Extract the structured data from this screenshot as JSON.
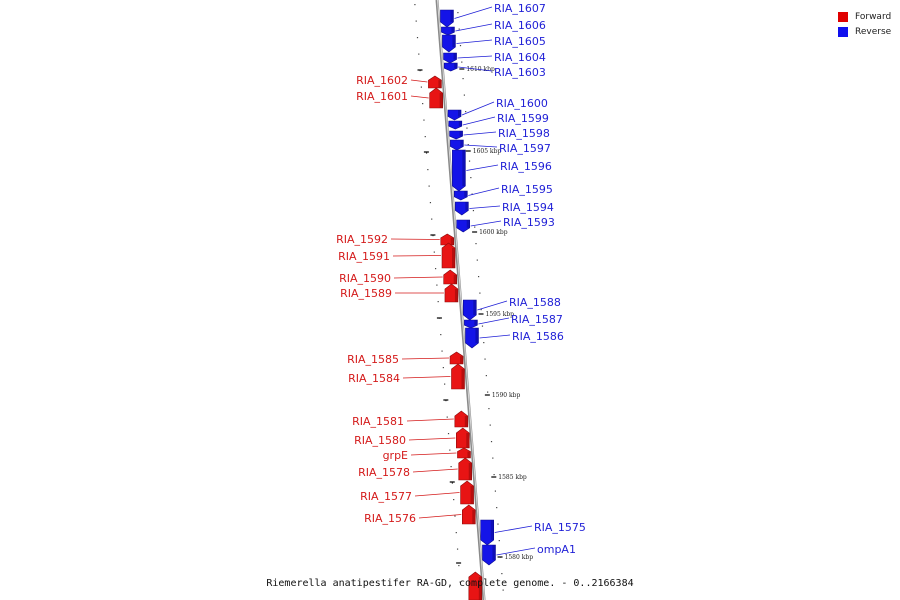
{
  "legend": [
    {
      "label": "Forward",
      "color": "#e00000"
    },
    {
      "label": "Reverse",
      "color": "#1010ee"
    }
  ],
  "caption": "Riemerella anatipestifer RA-GD, complete genome. - 0..2166384",
  "kbp_labels": [
    "1610 kbp",
    "1605 kbp",
    "1600 kbp",
    "1595 kbp",
    "1590 kbp",
    "1585 kbp",
    "1580 kbp"
  ],
  "reverse_genes": [
    "RIA_1607",
    "RIA_1606",
    "RIA_1605",
    "RIA_1604",
    "RIA_1603",
    "RIA_1600",
    "RIA_1599",
    "RIA_1598",
    "RIA_1597",
    "RIA_1596",
    "RIA_1595",
    "RIA_1594",
    "RIA_1593",
    "RIA_1588",
    "RIA_1587",
    "RIA_1586",
    "RIA_1575",
    "ompA1"
  ],
  "forward_genes": [
    "RIA_1602",
    "RIA_1601",
    "RIA_1592",
    "RIA_1591",
    "RIA_1590",
    "RIA_1589",
    "RIA_1585",
    "RIA_1584",
    "RIA_1581",
    "RIA_1580",
    "grpE",
    "RIA_1578",
    "RIA_1577",
    "RIA_1576"
  ]
}
